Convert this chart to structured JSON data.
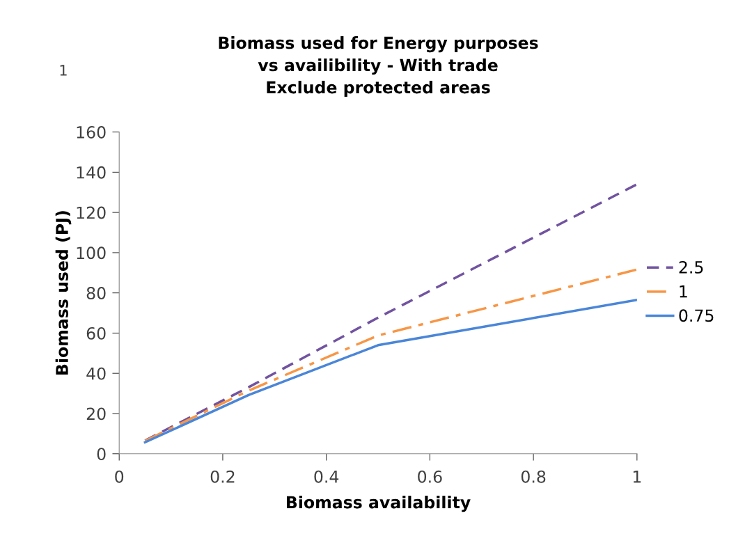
{
  "chart_data": {
    "type": "line",
    "title": "Biomass used for Energy purposes\nvs availibility - With trade\nExclude protected areas",
    "xlabel": "Biomass availability",
    "ylabel": "Biomass used (PJ)",
    "x": [
      0.05,
      0.25,
      0.5,
      1
    ],
    "series": [
      {
        "name": "2.5",
        "color": "#7153a0",
        "line_style": "dashed",
        "values": [
          6.6,
          33.1,
          67.7,
          134
        ]
      },
      {
        "name": "1",
        "color": "#f79646",
        "line_style": "dashdot",
        "values": [
          6.4,
          31.4,
          58.8,
          91.6
        ]
      },
      {
        "name": "0.75",
        "color": "#4a86d8",
        "line_style": "solid",
        "values": [
          5.7,
          29.2,
          54,
          76.5
        ]
      }
    ],
    "xlim": [
      0,
      1
    ],
    "xticks": [
      0,
      0.2,
      0.4,
      0.6,
      0.8,
      1
    ],
    "ylim": [
      0,
      160
    ],
    "yticks": [
      0,
      20,
      40,
      60,
      80,
      100,
      120,
      140,
      160
    ],
    "grid": false,
    "legend": "right",
    "marker": "none",
    "annotations": [
      "1"
    ]
  }
}
